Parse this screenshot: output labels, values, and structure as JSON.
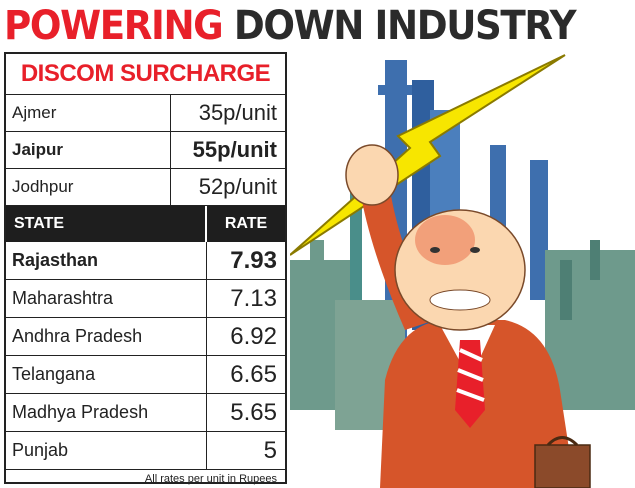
{
  "headline": {
    "part1": "POWERING",
    "part2": "DOWN INDUSTRY"
  },
  "discom": {
    "title": "DISCOM SURCHARGE",
    "rows": [
      {
        "city": "Ajmer",
        "value": "35p/unit"
      },
      {
        "city": "Jaipur",
        "value": "55p/unit"
      },
      {
        "city": "Jodhpur",
        "value": "52p/unit"
      }
    ]
  },
  "rates": {
    "headers": {
      "state": "STATE",
      "rate": "RATE"
    },
    "rows": [
      {
        "state": "Rajasthan",
        "rate": "7.93"
      },
      {
        "state": "Maharashtra",
        "rate": "7.13"
      },
      {
        "state": "Andhra Pradesh",
        "rate": "6.92"
      },
      {
        "state": "Telangana",
        "rate": "6.65"
      },
      {
        "state": "Madhya Pradesh",
        "rate": "5.65"
      },
      {
        "state": "Punjab",
        "rate": "5"
      }
    ],
    "footnote": "All rates per unit in Rupees"
  },
  "colors": {
    "headline_red": "#e8202a",
    "header_bg": "#1e1e1e",
    "bolt": "#f7e600"
  }
}
